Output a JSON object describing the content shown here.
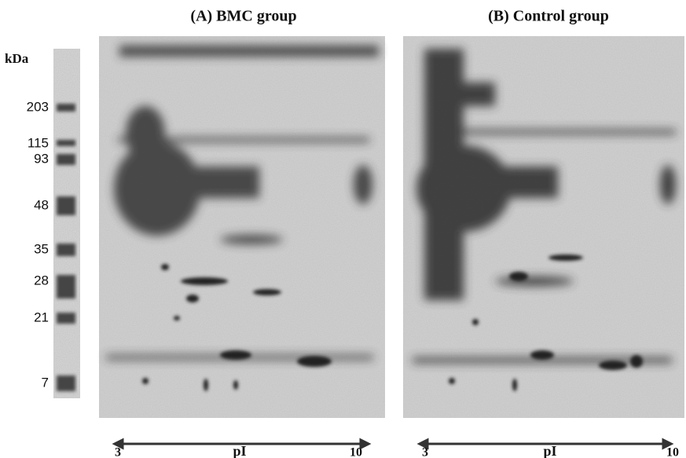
{
  "ladder": {
    "unit": "kDa",
    "markers": [
      "203",
      "115",
      "93",
      "48",
      "35",
      "28",
      "21",
      "7"
    ]
  },
  "panels": [
    {
      "title": "(A) BMC group",
      "axis": {
        "left": "3",
        "label": "pI",
        "right": "10"
      }
    },
    {
      "title": "(B) Control group",
      "axis": {
        "left": "3",
        "label": "pI",
        "right": "10"
      }
    }
  ]
}
